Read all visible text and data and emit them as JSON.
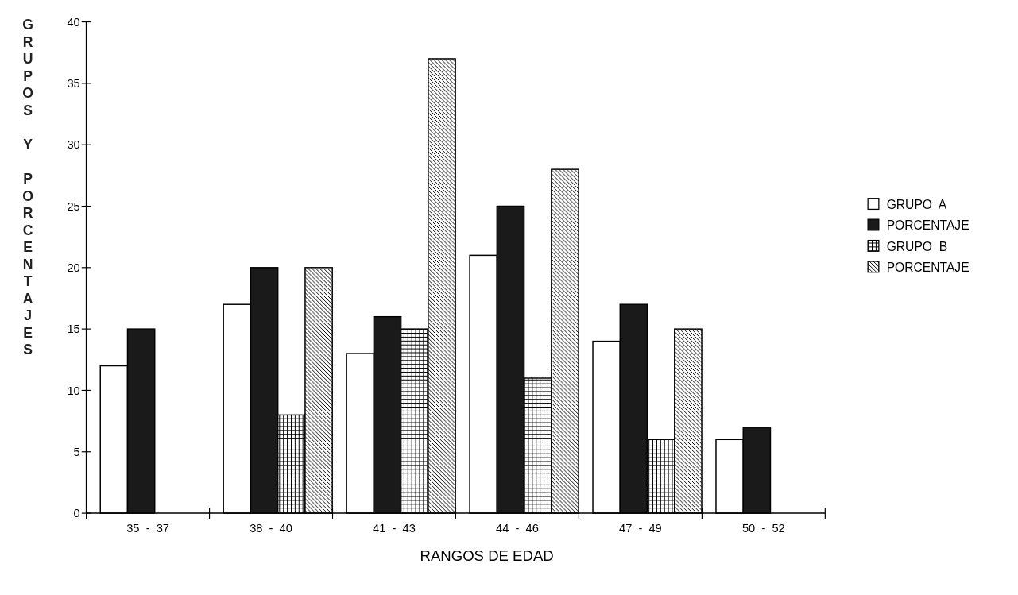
{
  "chart_data": {
    "type": "bar",
    "xlabel": "RANGOS DE EDAD",
    "ylabel": "GRUPOS Y PORCENTAJES",
    "categories": [
      "35  -  37",
      "38  -  40",
      "41  -  43",
      "44  -  46",
      "47  -  49",
      "50  -  52"
    ],
    "series": [
      {
        "name": "GRUPO  A",
        "color": "#ffffff",
        "values": [
          12,
          17,
          13,
          21,
          14,
          6
        ]
      },
      {
        "name": "PORCENTAJE",
        "color": "#1a1a1a",
        "values": [
          15,
          20,
          16,
          25,
          17,
          7
        ]
      },
      {
        "name": "GRUPO  B",
        "color": "#000000",
        "values": [
          null,
          8,
          15,
          11,
          6,
          null
        ]
      },
      {
        "name": "PORCENTAJE",
        "color": "#000000",
        "values": [
          null,
          20,
          37,
          28,
          15,
          null
        ]
      }
    ],
    "ylim": [
      0,
      40
    ],
    "yticks": [
      0,
      5,
      10,
      15,
      20,
      25,
      30,
      35,
      40
    ],
    "legend": "right",
    "grid": false
  }
}
